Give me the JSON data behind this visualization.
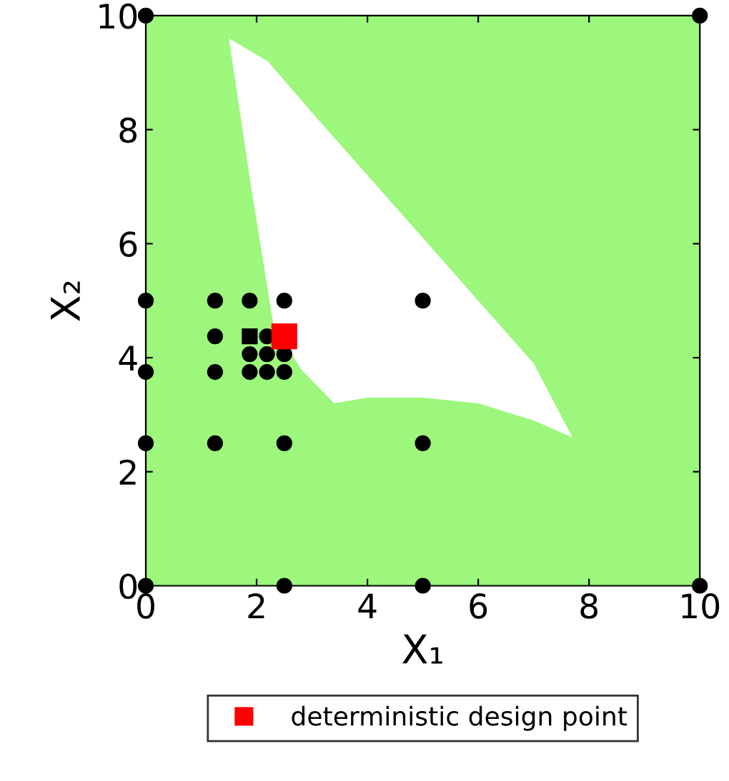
{
  "chart_data": {
    "type": "scatter",
    "xlabel": "X₁",
    "ylabel": "X₂",
    "xlim": [
      0,
      10
    ],
    "ylim": [
      0,
      10
    ],
    "xticks": [
      0,
      2,
      4,
      6,
      8,
      10
    ],
    "yticks": [
      0,
      2,
      4,
      6,
      8,
      10
    ],
    "grid": false,
    "legend": "bottom",
    "series": [
      {
        "type": "area",
        "color": "#ffffff",
        "x": [
          1.5,
          2.2,
          3,
          4,
          5,
          6,
          7,
          7.7,
          7,
          6,
          5,
          4,
          3.4,
          2.8,
          2.3,
          1.9,
          1.5
        ],
        "values": [
          9.6,
          9.2,
          8.3,
          7.2,
          6.1,
          5,
          3.9,
          2.6,
          2.9,
          3.2,
          3.3,
          3.3,
          3.2,
          3.8,
          4.6,
          7,
          9.6
        ]
      },
      {
        "color": "#000000",
        "marker": "circle",
        "x": [
          0,
          2.5,
          5,
          10,
          0,
          10,
          0,
          1.25,
          2.5,
          5,
          0,
          1.25,
          1.875,
          2.1875,
          2.5,
          1.875,
          2.1875,
          2.5,
          1.25,
          2.1875,
          0,
          1.25,
          1.875,
          2.5,
          5
        ],
        "values": [
          0,
          0,
          0,
          0,
          10,
          10,
          2.5,
          2.5,
          2.5,
          2.5,
          3.75,
          3.75,
          3.75,
          3.75,
          3.75,
          4.0625,
          4.0625,
          4.0625,
          4.375,
          4.375,
          5,
          5,
          5,
          5,
          5
        ]
      },
      {
        "color": "#000000",
        "marker": "square",
        "x": [
          1.875
        ],
        "values": [
          4.375
        ]
      },
      {
        "name": "deterministic design point",
        "color": "#ff0000",
        "marker": "square",
        "x": [
          2.5
        ],
        "values": [
          4.375
        ]
      }
    ]
  }
}
